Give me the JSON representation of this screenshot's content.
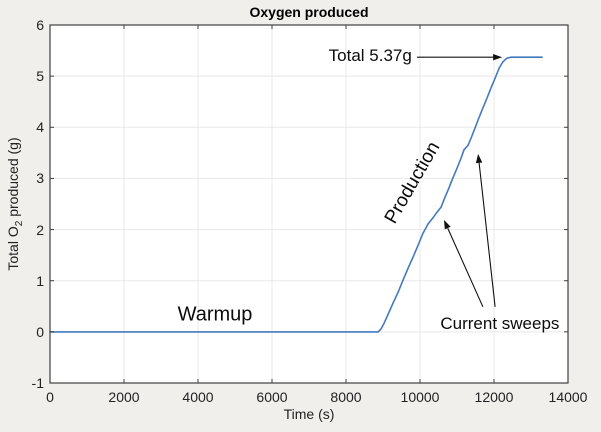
{
  "chart_data": {
    "type": "line",
    "title": "Oxygen produced",
    "xlabel": "Time (s)",
    "ylabel": "Total O2 produced (g)",
    "ylabel_parts": [
      {
        "text": "Total O"
      },
      {
        "text": "2",
        "sub": true
      },
      {
        "text": " produced (g)"
      }
    ],
    "xlim": [
      0,
      14000
    ],
    "ylim": [
      -1,
      6
    ],
    "x_ticks": [
      0,
      2000,
      4000,
      6000,
      8000,
      10000,
      12000,
      14000
    ],
    "y_ticks": [
      -1,
      0,
      1,
      2,
      3,
      4,
      5,
      6
    ],
    "grid": true,
    "legend": false,
    "line_color": "#4579bd",
    "series": [
      {
        "name": "Total O2 produced",
        "points": [
          [
            0,
            0.0
          ],
          [
            8870,
            0.0
          ],
          [
            8950,
            0.06
          ],
          [
            9030,
            0.17
          ],
          [
            9140,
            0.35
          ],
          [
            9270,
            0.56
          ],
          [
            9410,
            0.78
          ],
          [
            9540,
            1.01
          ],
          [
            9680,
            1.25
          ],
          [
            9810,
            1.46
          ],
          [
            9950,
            1.7
          ],
          [
            10080,
            1.93
          ],
          [
            10220,
            2.11
          ],
          [
            10350,
            2.23
          ],
          [
            10460,
            2.34
          ],
          [
            10570,
            2.44
          ],
          [
            10680,
            2.64
          ],
          [
            10780,
            2.81
          ],
          [
            10890,
            3.01
          ],
          [
            11000,
            3.2
          ],
          [
            11110,
            3.4
          ],
          [
            11190,
            3.56
          ],
          [
            11300,
            3.65
          ],
          [
            11380,
            3.79
          ],
          [
            11490,
            3.99
          ],
          [
            11590,
            4.18
          ],
          [
            11700,
            4.38
          ],
          [
            11810,
            4.57
          ],
          [
            11920,
            4.77
          ],
          [
            12030,
            4.96
          ],
          [
            12140,
            5.16
          ],
          [
            12240,
            5.28
          ],
          [
            12350,
            5.35
          ],
          [
            12460,
            5.37
          ],
          [
            13300,
            5.37
          ]
        ]
      }
    ],
    "annotations": {
      "total": {
        "label": "Total 5.37g",
        "text_at": [
          9780,
          5.39
        ],
        "arrow": {
          "from": [
            9920,
            5.37
          ],
          "to": [
            12220,
            5.37
          ]
        }
      },
      "warmup": {
        "label": "Warmup",
        "at": [
          4460,
          0.33
        ]
      },
      "production": {
        "label": "Production",
        "at": [
          9810,
          2.91
        ],
        "rotation": -60
      },
      "current_sweeps": {
        "label": "Current sweeps",
        "at": [
          12160,
          0.15
        ],
        "arrows": [
          {
            "from": [
              11700,
              0.49
            ],
            "to": [
              10650,
              2.19
            ]
          },
          {
            "from": [
              12030,
              0.49
            ],
            "to": [
              11570,
              3.48
            ]
          }
        ]
      }
    },
    "final_value_g": 5.37
  }
}
